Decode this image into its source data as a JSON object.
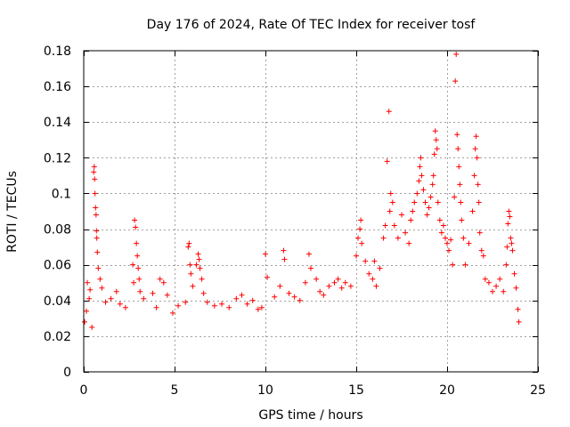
{
  "chart_data": {
    "type": "scatter",
    "title": "Day 176 of 2024, Rate Of TEC Index for receiver tosf",
    "xlabel": "GPS time / hours",
    "ylabel": "ROTI / TECUs",
    "xlim": [
      0,
      25
    ],
    "ylim": [
      0,
      0.18
    ],
    "xticks": [
      0,
      5,
      10,
      15,
      20,
      25
    ],
    "xtick_labels": [
      "0",
      "5",
      "10",
      "15",
      "20",
      "25"
    ],
    "yticks": [
      0,
      0.02,
      0.04,
      0.06,
      0.08,
      0.1,
      0.12,
      0.14,
      0.16,
      0.18
    ],
    "ytick_labels": [
      "0",
      "0.02",
      "0.04",
      "0.06",
      "0.08",
      "0.1",
      "0.12",
      "0.14",
      "0.16",
      "0.18"
    ],
    "grid": true,
    "marker": "+",
    "series": [
      {
        "name": "ROTI",
        "color": "#ff0000",
        "points": [
          [
            0.05,
            0.028
          ],
          [
            0.15,
            0.034
          ],
          [
            0.2,
            0.05
          ],
          [
            0.3,
            0.041
          ],
          [
            0.35,
            0.046
          ],
          [
            0.45,
            0.025
          ],
          [
            0.55,
            0.112
          ],
          [
            0.58,
            0.115
          ],
          [
            0.6,
            0.108
          ],
          [
            0.62,
            0.1
          ],
          [
            0.65,
            0.092
          ],
          [
            0.68,
            0.088
          ],
          [
            0.7,
            0.079
          ],
          [
            0.72,
            0.075
          ],
          [
            0.75,
            0.067
          ],
          [
            0.8,
            0.058
          ],
          [
            0.9,
            0.052
          ],
          [
            1.0,
            0.047
          ],
          [
            1.2,
            0.039
          ],
          [
            1.5,
            0.041
          ],
          [
            1.8,
            0.045
          ],
          [
            2.0,
            0.038
          ],
          [
            2.3,
            0.036
          ],
          [
            2.7,
            0.06
          ],
          [
            2.75,
            0.05
          ],
          [
            2.8,
            0.085
          ],
          [
            2.85,
            0.081
          ],
          [
            2.9,
            0.072
          ],
          [
            2.95,
            0.065
          ],
          [
            3.0,
            0.058
          ],
          [
            3.05,
            0.052
          ],
          [
            3.1,
            0.045
          ],
          [
            3.3,
            0.041
          ],
          [
            3.8,
            0.044
          ],
          [
            4.0,
            0.036
          ],
          [
            4.2,
            0.052
          ],
          [
            4.4,
            0.05
          ],
          [
            4.6,
            0.043
          ],
          [
            4.9,
            0.033
          ],
          [
            5.2,
            0.037
          ],
          [
            5.6,
            0.039
          ],
          [
            5.75,
            0.07
          ],
          [
            5.8,
            0.072
          ],
          [
            5.85,
            0.06
          ],
          [
            5.9,
            0.055
          ],
          [
            6.0,
            0.048
          ],
          [
            6.2,
            0.06
          ],
          [
            6.3,
            0.066
          ],
          [
            6.35,
            0.063
          ],
          [
            6.4,
            0.058
          ],
          [
            6.5,
            0.052
          ],
          [
            6.6,
            0.044
          ],
          [
            6.8,
            0.039
          ],
          [
            7.2,
            0.037
          ],
          [
            7.6,
            0.038
          ],
          [
            8.0,
            0.036
          ],
          [
            8.4,
            0.041
          ],
          [
            8.7,
            0.043
          ],
          [
            9.0,
            0.038
          ],
          [
            9.3,
            0.04
          ],
          [
            9.6,
            0.035
          ],
          [
            9.8,
            0.036
          ],
          [
            10.0,
            0.066
          ],
          [
            10.1,
            0.053
          ],
          [
            10.5,
            0.042
          ],
          [
            10.8,
            0.048
          ],
          [
            11.0,
            0.068
          ],
          [
            11.05,
            0.063
          ],
          [
            11.3,
            0.044
          ],
          [
            11.6,
            0.042
          ],
          [
            11.9,
            0.04
          ],
          [
            12.2,
            0.05
          ],
          [
            12.4,
            0.066
          ],
          [
            12.5,
            0.058
          ],
          [
            12.8,
            0.052
          ],
          [
            13.0,
            0.045
          ],
          [
            13.2,
            0.043
          ],
          [
            13.5,
            0.048
          ],
          [
            13.8,
            0.05
          ],
          [
            14.0,
            0.052
          ],
          [
            14.2,
            0.047
          ],
          [
            14.4,
            0.05
          ],
          [
            14.7,
            0.048
          ],
          [
            15.0,
            0.065
          ],
          [
            15.1,
            0.075
          ],
          [
            15.2,
            0.08
          ],
          [
            15.25,
            0.085
          ],
          [
            15.3,
            0.072
          ],
          [
            15.5,
            0.062
          ],
          [
            15.7,
            0.055
          ],
          [
            15.9,
            0.052
          ],
          [
            16.0,
            0.062
          ],
          [
            16.1,
            0.048
          ],
          [
            16.3,
            0.058
          ],
          [
            16.5,
            0.075
          ],
          [
            16.6,
            0.082
          ],
          [
            16.7,
            0.118
          ],
          [
            16.8,
            0.146
          ],
          [
            16.85,
            0.09
          ],
          [
            16.9,
            0.1
          ],
          [
            17.0,
            0.095
          ],
          [
            17.1,
            0.082
          ],
          [
            17.3,
            0.075
          ],
          [
            17.5,
            0.088
          ],
          [
            17.7,
            0.078
          ],
          [
            17.9,
            0.072
          ],
          [
            18.0,
            0.085
          ],
          [
            18.1,
            0.09
          ],
          [
            18.2,
            0.095
          ],
          [
            18.35,
            0.1
          ],
          [
            18.45,
            0.107
          ],
          [
            18.5,
            0.115
          ],
          [
            18.55,
            0.12
          ],
          [
            18.6,
            0.11
          ],
          [
            18.7,
            0.102
          ],
          [
            18.8,
            0.095
          ],
          [
            18.9,
            0.088
          ],
          [
            19.0,
            0.092
          ],
          [
            19.1,
            0.098
          ],
          [
            19.2,
            0.105
          ],
          [
            19.25,
            0.11
          ],
          [
            19.3,
            0.122
          ],
          [
            19.35,
            0.135
          ],
          [
            19.4,
            0.13
          ],
          [
            19.45,
            0.125
          ],
          [
            19.5,
            0.095
          ],
          [
            19.6,
            0.085
          ],
          [
            19.7,
            0.078
          ],
          [
            19.8,
            0.082
          ],
          [
            19.9,
            0.075
          ],
          [
            20.0,
            0.072
          ],
          [
            20.1,
            0.068
          ],
          [
            20.2,
            0.074
          ],
          [
            20.3,
            0.06
          ],
          [
            20.4,
            0.098
          ],
          [
            20.45,
            0.163
          ],
          [
            20.5,
            0.178
          ],
          [
            20.55,
            0.133
          ],
          [
            20.6,
            0.125
          ],
          [
            20.65,
            0.115
          ],
          [
            20.7,
            0.105
          ],
          [
            20.75,
            0.095
          ],
          [
            20.8,
            0.085
          ],
          [
            20.9,
            0.075
          ],
          [
            21.0,
            0.06
          ],
          [
            21.2,
            0.072
          ],
          [
            21.4,
            0.09
          ],
          [
            21.5,
            0.11
          ],
          [
            21.55,
            0.125
          ],
          [
            21.6,
            0.132
          ],
          [
            21.65,
            0.12
          ],
          [
            21.7,
            0.105
          ],
          [
            21.75,
            0.095
          ],
          [
            21.8,
            0.078
          ],
          [
            21.9,
            0.068
          ],
          [
            22.0,
            0.065
          ],
          [
            22.1,
            0.052
          ],
          [
            22.3,
            0.05
          ],
          [
            22.5,
            0.045
          ],
          [
            22.7,
            0.048
          ],
          [
            22.9,
            0.052
          ],
          [
            23.1,
            0.045
          ],
          [
            23.25,
            0.06
          ],
          [
            23.3,
            0.07
          ],
          [
            23.35,
            0.083
          ],
          [
            23.4,
            0.09
          ],
          [
            23.45,
            0.087
          ],
          [
            23.5,
            0.075
          ],
          [
            23.55,
            0.072
          ],
          [
            23.6,
            0.068
          ],
          [
            23.7,
            0.055
          ],
          [
            23.8,
            0.047
          ],
          [
            23.9,
            0.035
          ],
          [
            23.95,
            0.028
          ]
        ]
      }
    ]
  }
}
